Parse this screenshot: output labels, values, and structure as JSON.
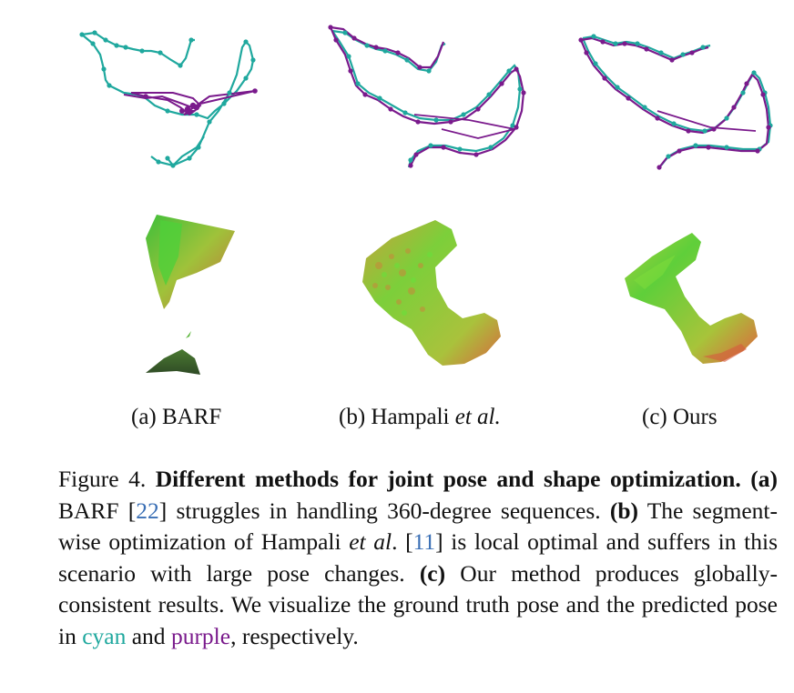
{
  "figure": {
    "panels": [
      {
        "id": "a",
        "label_prefix": "(a) ",
        "label_main": "BARF",
        "label_italic": ""
      },
      {
        "id": "b",
        "label_prefix": "(b) ",
        "label_main": "Hampali ",
        "label_italic": "et al."
      },
      {
        "id": "c",
        "label_prefix": "(c) ",
        "label_main": "Ours",
        "label_italic": ""
      }
    ],
    "colors": {
      "ground_truth": "#1fa89e",
      "predicted": "#7a1a8c"
    }
  },
  "caption": {
    "prefix": "Figure 4. ",
    "title_bold": "Different methods for joint pose and shape optimization.",
    "a_tag": "(a)",
    "a_text_1": " BARF [",
    "a_ref": "22",
    "a_text_2": "] struggles in handling 360-degree sequences. ",
    "b_tag": "(b)",
    "b_text_1": " The segment-wise optimization of Hampali ",
    "b_italic": "et al",
    "b_text_2": ". [",
    "b_ref": "11",
    "b_text_3": "] is local optimal and suffers in this scenario with large pose changes. ",
    "c_tag": "(c)",
    "c_text_1": " Our method produces globally-consistent results. We visualize the ground truth pose and the predicted pose in ",
    "cyan_word": "cyan",
    "and_word": " and ",
    "purple_word": "purple",
    "end_text": ", respectively."
  }
}
